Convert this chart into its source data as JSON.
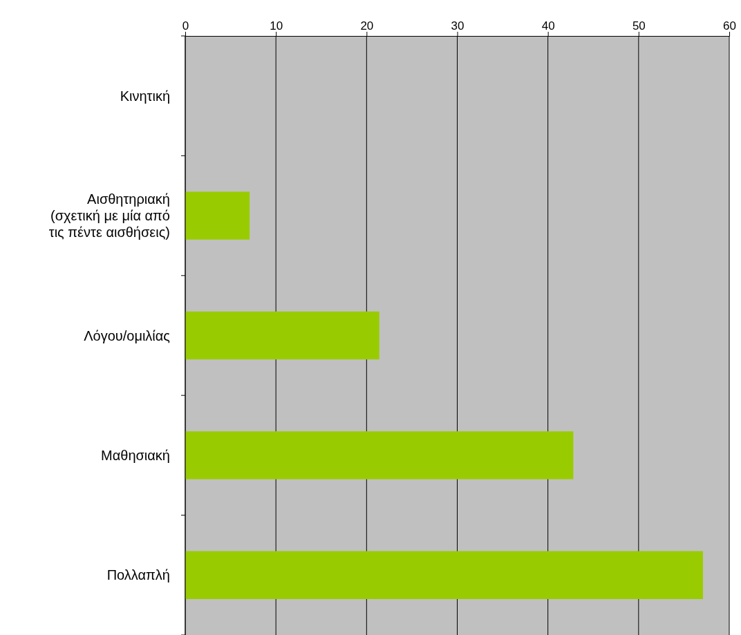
{
  "chart_data": {
    "type": "bar",
    "orientation": "horizontal",
    "categories": [
      "Κινητική",
      "Αισθητηριακή\n(σχετική με μία από\nτις πέντε αισθήσεις)",
      "Λόγου/ομιλίας",
      "Μαθησιακή",
      "Πολλαπλή"
    ],
    "values": [
      0,
      7.1,
      21.4,
      42.8,
      57.1
    ],
    "color": "#99cc00",
    "xlim": [
      0,
      60
    ],
    "xticks": [
      0,
      10,
      20,
      30,
      40,
      50,
      60
    ],
    "grid": "x"
  }
}
